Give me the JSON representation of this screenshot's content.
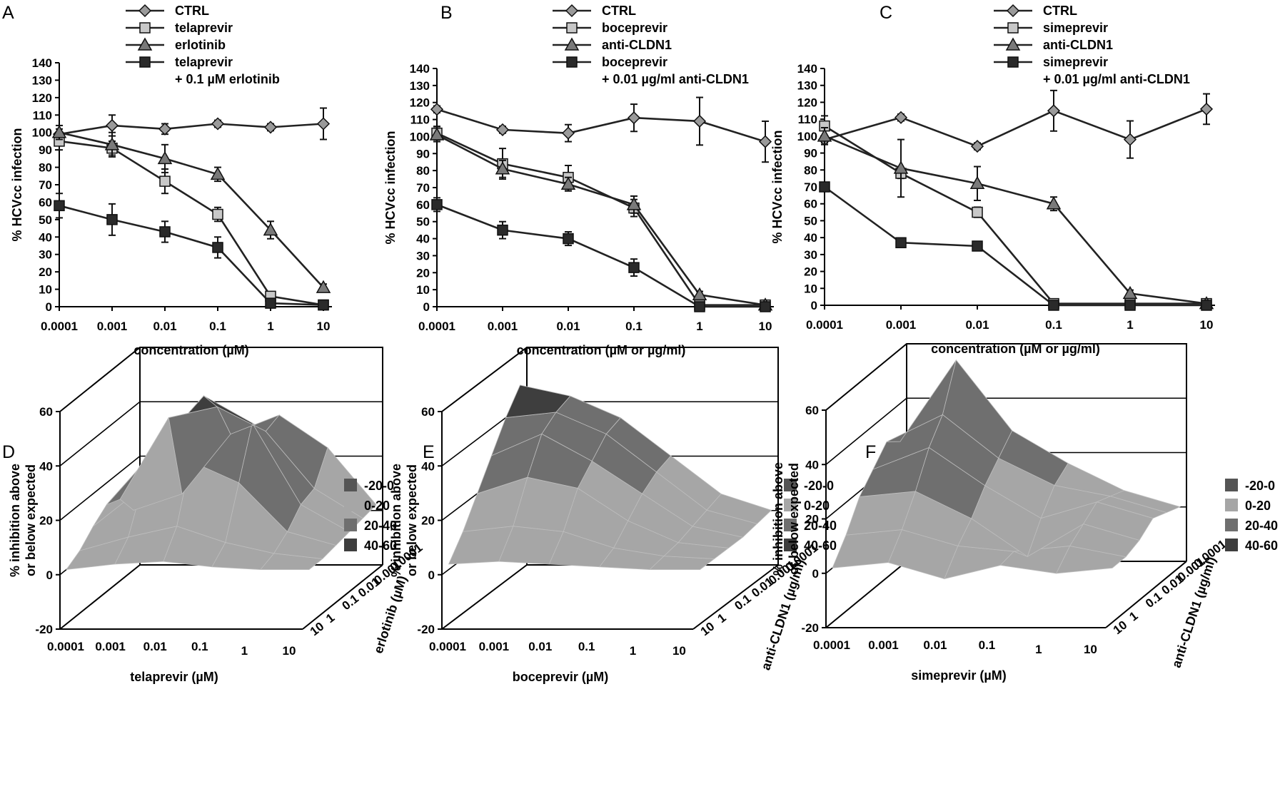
{
  "panel_labels": [
    "A",
    "B",
    "C",
    "D",
    "E",
    "F"
  ],
  "colors": {
    "ctrl": "#9a9a9a",
    "single_drug": "#c8c8c8",
    "second_agent": "#7a7a7a",
    "combination": "#2a2a2a",
    "band_neg20_0": "#555555",
    "band_0_20": "#a6a6a6",
    "band_20_40": "#6f6f6f",
    "band_40_60": "#3e3e3e"
  },
  "chart_data": [
    {
      "type": "line",
      "panel": "A",
      "xlabel": "concentration (µM)",
      "ylabel": "% HCVcc infection",
      "x": [
        "0.0001",
        "0.001",
        "0.01",
        "0.1",
        "1",
        "10"
      ],
      "xscale": "log",
      "ylim": [
        0,
        140
      ],
      "yticks": [
        0,
        10,
        20,
        30,
        40,
        50,
        60,
        70,
        80,
        90,
        100,
        110,
        120,
        130,
        140
      ],
      "legend": [
        "CTRL",
        "telaprevir",
        "erlotinib",
        "telaprevir",
        "+ 0.1 µM erlotinib"
      ],
      "series": [
        {
          "name": "CTRL",
          "marker": "diamond",
          "values": [
            99,
            104,
            102,
            105,
            103,
            105
          ],
          "errors": [
            3,
            6,
            3,
            2,
            2,
            9
          ]
        },
        {
          "name": "telaprevir",
          "marker": "square",
          "values": [
            95,
            91,
            72,
            53,
            6,
            1
          ],
          "errors": [
            5,
            4,
            7,
            4,
            2,
            1
          ]
        },
        {
          "name": "erlotinib",
          "marker": "triangle",
          "values": [
            100,
            93,
            85,
            76,
            44,
            11
          ],
          "errors": [
            4,
            7,
            8,
            4,
            5,
            2
          ]
        },
        {
          "name": "telaprevir + 0.1 µM erlotinib",
          "marker": "square",
          "values": [
            58,
            50,
            43,
            34,
            2,
            1
          ],
          "errors": [
            7,
            9,
            6,
            6,
            2,
            1
          ]
        }
      ]
    },
    {
      "type": "line",
      "panel": "B",
      "xlabel": "concentration (µM or µg/ml)",
      "ylabel": "% HCVcc infection",
      "x": [
        "0.0001",
        "0.001",
        "0.01",
        "0.1",
        "1",
        "10"
      ],
      "xscale": "log",
      "ylim": [
        0,
        140
      ],
      "yticks": [
        0,
        10,
        20,
        30,
        40,
        50,
        60,
        70,
        80,
        90,
        100,
        110,
        120,
        130,
        140
      ],
      "legend": [
        "CTRL",
        "boceprevir",
        "anti-CLDN1",
        "boceprevir",
        "+ 0.01 µg/ml anti-CLDN1"
      ],
      "series": [
        {
          "name": "CTRL",
          "marker": "diamond",
          "values": [
            116,
            104,
            102,
            111,
            109,
            97
          ],
          "errors": [
            2,
            2,
            5,
            8,
            14,
            12
          ]
        },
        {
          "name": "boceprevir",
          "marker": "square",
          "values": [
            102,
            84,
            76,
            58,
            1,
            1
          ],
          "errors": [
            4,
            9,
            7,
            5,
            1,
            1
          ]
        },
        {
          "name": "anti-CLDN1",
          "marker": "triangle",
          "values": [
            101,
            81,
            72,
            60,
            7,
            1
          ],
          "errors": [
            4,
            5,
            4,
            5,
            2,
            1
          ]
        },
        {
          "name": "boceprevir + 0.01 µg/ml anti-CLDN1",
          "marker": "square",
          "values": [
            60,
            45,
            40,
            23,
            0,
            0
          ],
          "errors": [
            4,
            5,
            4,
            5,
            1,
            1
          ]
        }
      ]
    },
    {
      "type": "line",
      "panel": "C",
      "xlabel": "concentration (µM or µg/ml)",
      "ylabel": "% HCVcc infection",
      "x": [
        "0.0001",
        "0.001",
        "0.01",
        "0.1",
        "1",
        "10"
      ],
      "xscale": "log",
      "ylim": [
        0,
        140
      ],
      "yticks": [
        0,
        10,
        20,
        30,
        40,
        50,
        60,
        70,
        80,
        90,
        100,
        110,
        120,
        130,
        140
      ],
      "legend": [
        "CTRL",
        "simeprevir",
        "anti-CLDN1",
        "simeprevir",
        "+ 0.01 µg/ml anti-CLDN1"
      ],
      "series": [
        {
          "name": "CTRL",
          "marker": "diamond",
          "values": [
            98,
            111,
            94,
            115,
            98,
            116
          ],
          "errors": [
            2,
            2,
            2,
            12,
            11,
            9
          ]
        },
        {
          "name": "simeprevir",
          "marker": "square",
          "values": [
            106,
            78,
            55,
            1,
            1,
            1
          ],
          "errors": [
            6,
            3,
            3,
            1,
            1,
            1
          ]
        },
        {
          "name": "anti-CLDN1",
          "marker": "triangle",
          "values": [
            100,
            81,
            72,
            60,
            7,
            1
          ],
          "errors": [
            5,
            17,
            10,
            4,
            2,
            1
          ]
        },
        {
          "name": "simeprevir + 0.01 µg/ml anti-CLDN1",
          "marker": "square",
          "values": [
            70,
            37,
            35,
            0,
            0,
            0
          ],
          "errors": [
            2,
            2,
            2,
            1,
            1,
            1
          ]
        }
      ]
    },
    {
      "type": "area",
      "panel": "D",
      "zlabel": "% inhibition above or below expected",
      "zticks": [
        "-20",
        "0",
        "20",
        "40",
        "60"
      ],
      "xlabel": "telaprevir (µM)",
      "xticks": [
        "0.0001",
        "0.001",
        "0.01",
        "0.1",
        "1",
        "10"
      ],
      "ylabel": "erlotinib (µM)",
      "yticks": [
        "0.0001",
        "0.001",
        "0.01",
        "0.1",
        "1",
        "10"
      ],
      "legend": [
        "-20-0",
        "0-20",
        "20-40",
        "40-60"
      ],
      "surface": [
        [
          2,
          8,
          30,
          37,
          25,
          4
        ],
        [
          10,
          40,
          44,
          35,
          14,
          3
        ],
        [
          12,
          32,
          52,
          42,
          12,
          2
        ],
        [
          8,
          22,
          32,
          24,
          6,
          1
        ],
        [
          3,
          8,
          12,
          6,
          2,
          0
        ],
        [
          0,
          2,
          3,
          1,
          0,
          0
        ]
      ]
    },
    {
      "type": "area",
      "panel": "E",
      "zlabel": "% inhibition above or below expected",
      "zticks": [
        "-20",
        "0",
        "20",
        "40",
        "60"
      ],
      "xlabel": "boceprevir (µM)",
      "xticks": [
        "0.0001",
        "0.001",
        "0.01",
        "0.1",
        "1",
        "10"
      ],
      "ylabel": "anti-CLDN1 (µg/ml)",
      "yticks": [
        "0.0001",
        "0.001",
        "0.01",
        "0.1",
        "1",
        "10"
      ],
      "legend": [
        "-20-0",
        "0-20",
        "20-40",
        "40-60"
      ],
      "surface": [
        [
          48,
          44,
          36,
          22,
          8,
          2
        ],
        [
          40,
          42,
          34,
          20,
          6,
          1
        ],
        [
          30,
          38,
          28,
          16,
          4,
          0
        ],
        [
          20,
          26,
          22,
          10,
          2,
          0
        ],
        [
          10,
          12,
          10,
          4,
          1,
          0
        ],
        [
          2,
          3,
          2,
          1,
          0,
          0
        ]
      ]
    },
    {
      "type": "area",
      "panel": "F",
      "zlabel": "% inhibition above or below expected",
      "zticks": [
        "-20",
        "0",
        "20",
        "40",
        "60"
      ],
      "xlabel": "simeprevir (µM)",
      "xticks": [
        "0.0001",
        "0.001",
        "0.01",
        "0.1",
        "1",
        "10"
      ],
      "ylabel": "anti-CLDN1 (µg/ml)",
      "yticks": [
        "0.0001",
        "0.001",
        "0.01",
        "0.1",
        "1",
        "10"
      ],
      "legend": [
        "-20-0",
        "0-20",
        "20-40",
        "40-60"
      ],
      "surface": [
        [
          26,
          56,
          30,
          18,
          8,
          2
        ],
        [
          30,
          40,
          24,
          14,
          10,
          4
        ],
        [
          24,
          32,
          18,
          6,
          12,
          6
        ],
        [
          18,
          20,
          10,
          -4,
          8,
          2
        ],
        [
          8,
          10,
          4,
          2,
          4,
          0
        ],
        [
          0,
          2,
          -4,
          1,
          -2,
          0
        ]
      ]
    }
  ]
}
